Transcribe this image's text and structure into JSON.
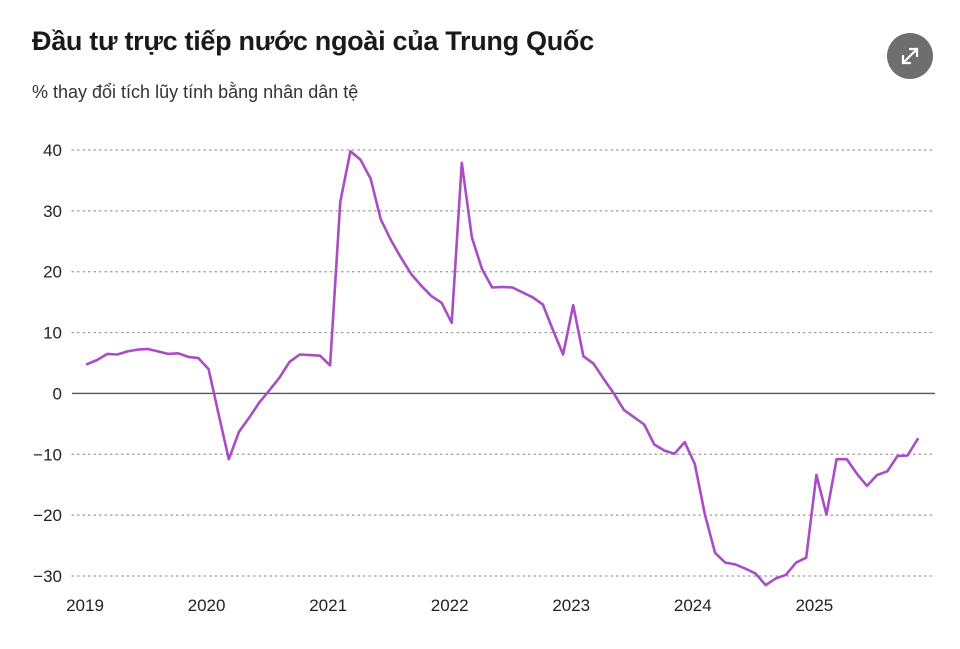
{
  "header": {
    "title": "Đầu tư trực tiếp nước ngoài của Trung Quốc",
    "subtitle": "% thay đổi tích lũy tính bằng nhân dân tệ",
    "expand_icon": "expand-arrows-icon"
  },
  "colors": {
    "line": "#a94dc5",
    "grid": "#9a9a9a",
    "zero_line": "#555555",
    "button": "#6e6e6e"
  },
  "chart_data": {
    "type": "line",
    "title": "Đầu tư trực tiếp nước ngoài của Trung Quốc",
    "ylabel": "% thay đổi tích lũy tính bằng nhân dân tệ",
    "xlabel": "",
    "ylim": [
      -31.5,
      41
    ],
    "xlim": [
      "2019-01",
      "2025-12"
    ],
    "yticks": [
      40,
      30,
      20,
      10,
      0,
      -10,
      -20,
      -30
    ],
    "ytick_labels": [
      "40",
      "30",
      "20",
      "10",
      "0",
      "−10",
      "−20",
      "−30"
    ],
    "xticks": [
      "2019",
      "2020",
      "2021",
      "2022",
      "2023",
      "2024",
      "2025"
    ],
    "grid": true,
    "grid_style": "dotted",
    "series": [
      {
        "x": [
          "2019-01",
          "2019-02",
          "2019-03",
          "2019-04",
          "2019-05",
          "2019-06",
          "2019-07",
          "2019-08",
          "2019-09",
          "2019-10",
          "2019-11",
          "2019-12",
          "2020-01",
          "2020-02",
          "2020-03",
          "2020-04",
          "2020-05",
          "2020-06",
          "2020-07",
          "2020-08",
          "2020-09",
          "2020-10",
          "2020-11",
          "2020-12",
          "2021-01",
          "2021-02",
          "2021-03",
          "2021-04",
          "2021-05",
          "2021-06",
          "2021-07",
          "2021-08",
          "2021-09",
          "2021-10",
          "2021-11",
          "2021-12",
          "2022-01",
          "2022-02",
          "2022-03",
          "2022-04",
          "2022-05",
          "2022-06",
          "2022-07",
          "2022-08",
          "2022-09",
          "2022-10",
          "2022-11",
          "2022-12",
          "2023-01",
          "2023-02",
          "2023-03",
          "2023-04",
          "2023-05",
          "2023-06",
          "2023-07",
          "2023-08",
          "2023-09",
          "2023-10",
          "2023-11",
          "2023-12",
          "2024-01",
          "2024-02",
          "2024-03",
          "2024-04",
          "2024-05",
          "2024-06",
          "2024-07",
          "2024-08",
          "2024-09",
          "2024-10",
          "2024-11",
          "2024-12",
          "2025-01",
          "2025-02",
          "2025-03",
          "2025-04",
          "2025-05",
          "2025-06",
          "2025-07",
          "2025-08",
          "2025-09",
          "2025-10",
          "2025-11"
        ],
        "values": [
          4.8,
          5.5,
          6.5,
          6.4,
          6.9,
          7.2,
          7.3,
          6.9,
          6.5,
          6.6,
          6.0,
          5.8,
          4.0,
          -3.5,
          -10.8,
          -6.3,
          -4.0,
          -1.5,
          0.5,
          2.6,
          5.2,
          6.4,
          6.3,
          6.2,
          4.6,
          31.5,
          39.8,
          38.4,
          35.3,
          28.6,
          25.2,
          22.3,
          19.6,
          17.7,
          16.0,
          14.9,
          11.6,
          37.9,
          25.6,
          20.4,
          17.4,
          17.5,
          17.4,
          16.6,
          15.8,
          14.6,
          10.4,
          6.4,
          14.5,
          6.1,
          4.9,
          2.4,
          0.0,
          -2.7,
          -3.9,
          -5.1,
          -8.4,
          -9.4,
          -9.9,
          -8.0,
          -11.6,
          -19.9,
          -26.2,
          -27.8,
          -28.1,
          -28.8,
          -29.6,
          -31.5,
          -30.4,
          -29.8,
          -27.8,
          -27.0,
          -13.4,
          -19.9,
          -10.8,
          -10.8,
          -13.2,
          -15.2,
          -13.4,
          -12.8,
          -10.3,
          -10.2,
          -7.5
        ]
      }
    ]
  }
}
